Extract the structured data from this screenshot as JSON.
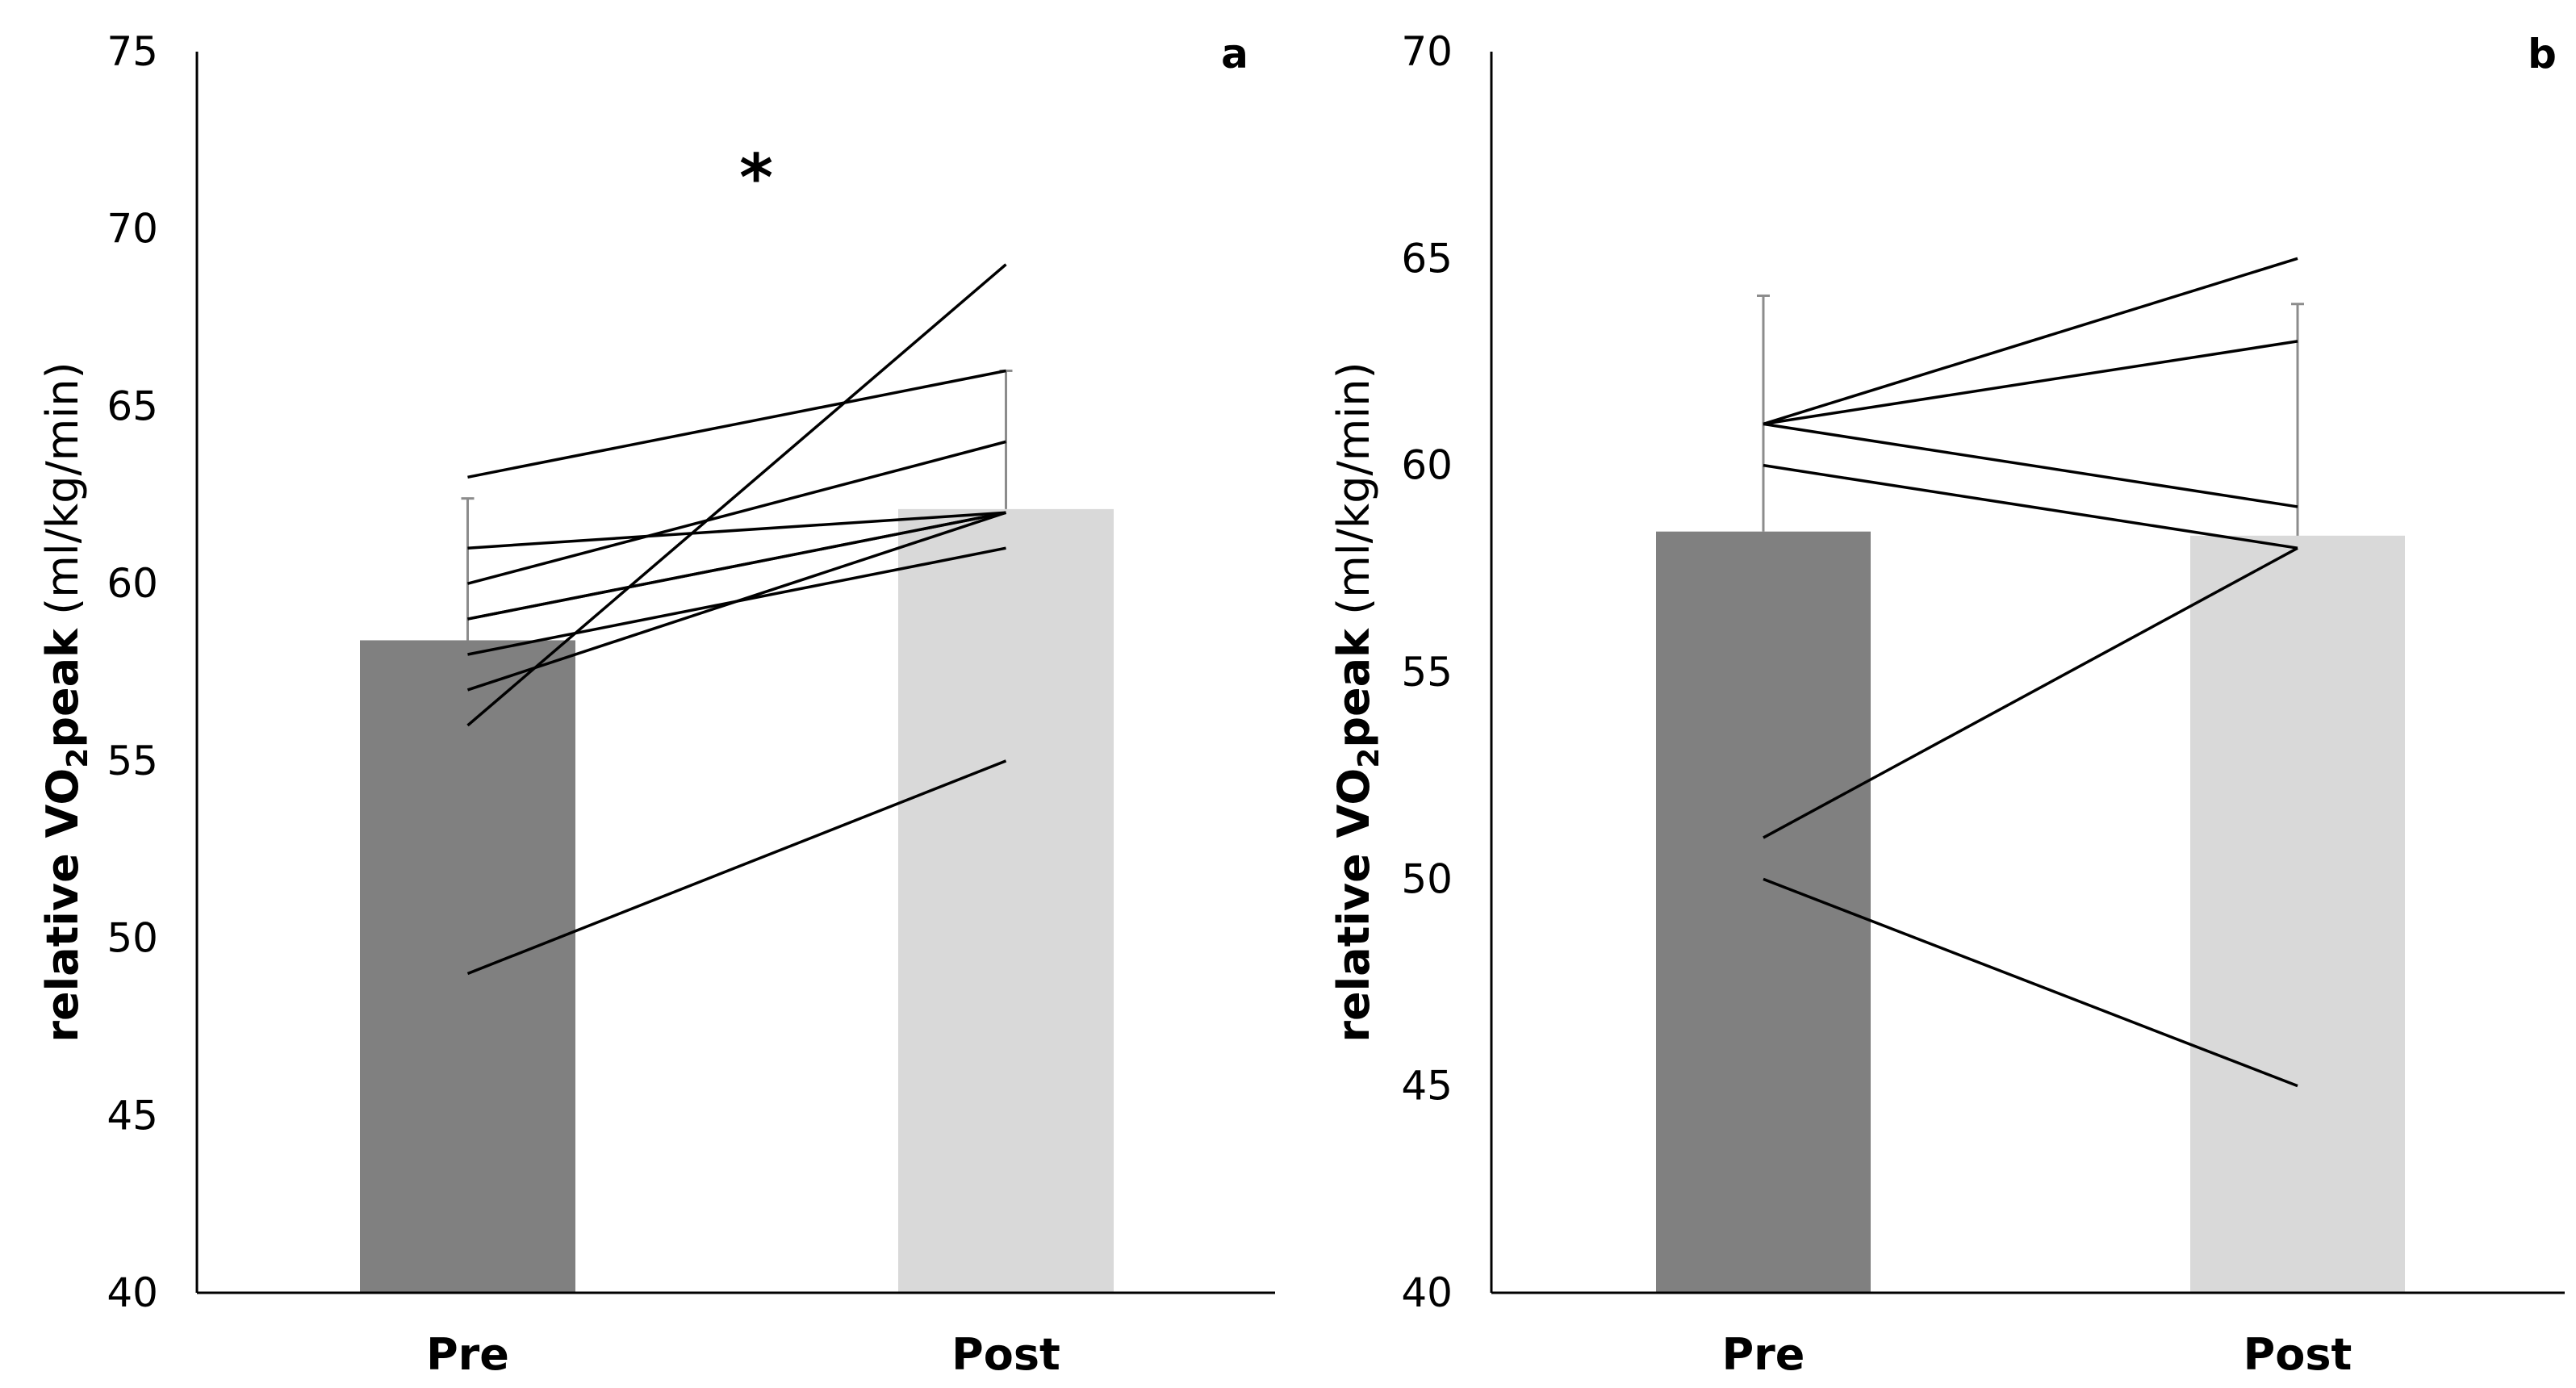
{
  "chart_data": [
    {
      "type": "bar",
      "panel_label": "a",
      "categories": [
        "Pre",
        "Post"
      ],
      "values": [
        58.4,
        62.1
      ],
      "error_upper": [
        62.4,
        66.0
      ],
      "bar_colors": [
        "#808080",
        "#d9d9d9"
      ],
      "ylim": [
        40,
        75
      ],
      "yticks": [
        "40",
        "45",
        "50",
        "55",
        "60",
        "65",
        "70",
        "75"
      ],
      "ylabel": {
        "prefix": "relative VO",
        "subscript": "2",
        "bold_suffix": "peak",
        "units": " (ml/kg/min)"
      },
      "annotation": "*",
      "individual_lines": [
        [
          63,
          66
        ],
        [
          61,
          62
        ],
        [
          60,
          64
        ],
        [
          59,
          62
        ],
        [
          59,
          62
        ],
        [
          58,
          61
        ],
        [
          57,
          62
        ],
        [
          56,
          69
        ],
        [
          49,
          55
        ]
      ]
    },
    {
      "type": "bar",
      "panel_label": "b",
      "categories": [
        "Pre",
        "Post"
      ],
      "values": [
        58.4,
        58.3
      ],
      "error_upper": [
        64.1,
        63.9
      ],
      "bar_colors": [
        "#808080",
        "#d9d9d9"
      ],
      "ylim": [
        40,
        70
      ],
      "yticks": [
        "40",
        "45",
        "50",
        "55",
        "60",
        "65",
        "70"
      ],
      "ylabel": {
        "prefix": "relative VO",
        "subscript": "2",
        "bold_suffix": "peak",
        "units": " (ml/kg/min)"
      },
      "individual_lines": [
        [
          61,
          65
        ],
        [
          61,
          63
        ],
        [
          61,
          59
        ],
        [
          60,
          58
        ],
        [
          51,
          58
        ],
        [
          50,
          45
        ]
      ]
    }
  ]
}
